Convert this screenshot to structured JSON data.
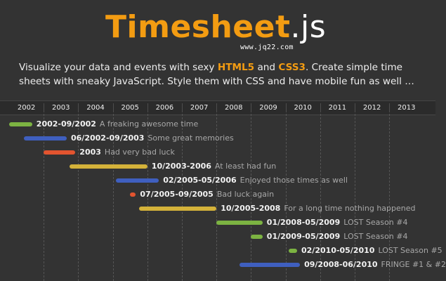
{
  "header": {
    "logo_main": "Timesheet",
    "logo_ext": ".js",
    "watermark": "www.jq22.com",
    "tagline_part1": "Visualize your data and events with sexy ",
    "tagline_html5": "HTML5",
    "tagline_and": " and ",
    "tagline_css3": "CSS3",
    "tagline_part2": ". Create simple time sheets with sneaky JavaScript. Style them with CSS and have mobile fun as well …"
  },
  "colors": {
    "background": "#333333",
    "accent": "#f39c12",
    "green": "#7cb342",
    "blue": "#3f5fbf",
    "red": "#e2542f",
    "yellow": "#d4b23a"
  },
  "timeline": {
    "years": [
      "2002",
      "2003",
      "2004",
      "2005",
      "2006",
      "2007",
      "2008",
      "2009",
      "2010",
      "2011",
      "2012",
      "2013"
    ],
    "entries": [
      {
        "start": "2002-01",
        "end": "2002-09",
        "color": "green",
        "date_label": "2002-09/2002",
        "description": "A freaking awesome time"
      },
      {
        "start": "2002-06",
        "end": "2003-09",
        "color": "blue",
        "date_label": "06/2002-09/2003",
        "description": "Some great memories"
      },
      {
        "start": "2003-01",
        "end": "2003-12",
        "color": "red",
        "date_label": "2003",
        "description": "Had very bad luck"
      },
      {
        "start": "2003-10",
        "end": "2006-01",
        "color": "yellow",
        "date_label": "10/2003-2006",
        "description": "At least had fun"
      },
      {
        "start": "2005-02",
        "end": "2006-05",
        "color": "blue",
        "date_label": "02/2005-05/2006",
        "description": "Enjoyed those times as well"
      },
      {
        "start": "2005-07",
        "end": "2005-09",
        "color": "red",
        "date_label": "07/2005-09/2005",
        "description": "Bad luck again"
      },
      {
        "start": "2005-10",
        "end": "2008-01",
        "color": "yellow",
        "date_label": "10/2005-2008",
        "description": "For a long time nothing happened"
      },
      {
        "start": "2008-01",
        "end": "2009-05",
        "color": "green",
        "date_label": "01/2008-05/2009",
        "description": "LOST Season #4"
      },
      {
        "start": "2009-01",
        "end": "2009-05",
        "color": "green",
        "date_label": "01/2009-05/2009",
        "description": "LOST Season #4"
      },
      {
        "start": "2010-02",
        "end": "2010-05",
        "color": "green",
        "date_label": "02/2010-05/2010",
        "description": "LOST Season #5"
      },
      {
        "start": "2008-09",
        "end": "2010-06",
        "color": "blue",
        "date_label": "09/2008-06/2010",
        "description": "FRINGE #1 & #2"
      }
    ]
  }
}
